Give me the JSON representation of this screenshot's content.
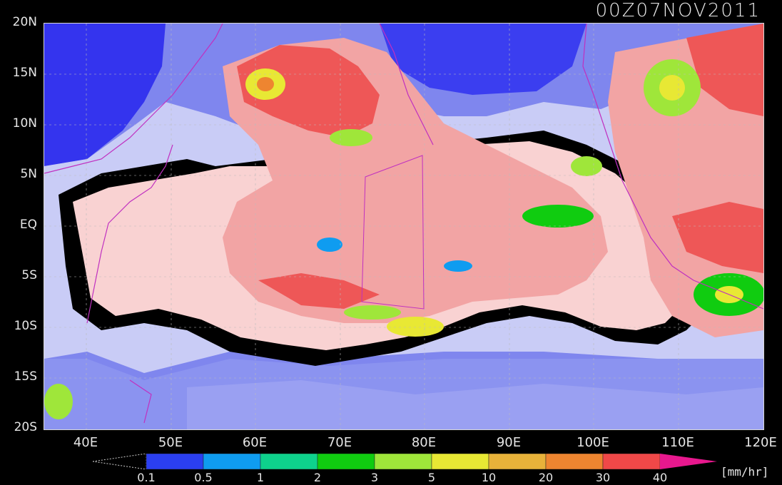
{
  "title": "00Z07NOV2011",
  "lat_labels": [
    "20N",
    "15N",
    "10N",
    "5N",
    "EQ",
    "5S",
    "10S",
    "15S",
    "20S"
  ],
  "lon_labels": [
    "40E",
    "50E",
    "60E",
    "70E",
    "80E",
    "90E",
    "100E",
    "110E",
    "120E"
  ],
  "colorbar": {
    "levels": [
      "0.1",
      "0.5",
      "1",
      "2",
      "3",
      "5",
      "10",
      "20",
      "30",
      "40"
    ],
    "colors": [
      "#2b3ff0",
      "#0f9cf0",
      "#0ed28c",
      "#10cc10",
      "#9fe63a",
      "#e8e834",
      "#e8b23a",
      "#ee8530",
      "#f04848",
      "#e8188e"
    ],
    "units": "[mm/hr]"
  },
  "palette": {
    "dry": "#3434ee",
    "low_blue": "#7f86ee",
    "pale_blue": "#c9ccf6",
    "pink_light": "#f9d2d2",
    "pink_mid": "#f2a4a4",
    "red": "#ee5757",
    "boundary": "#000000",
    "coast": "#c030c0"
  }
}
